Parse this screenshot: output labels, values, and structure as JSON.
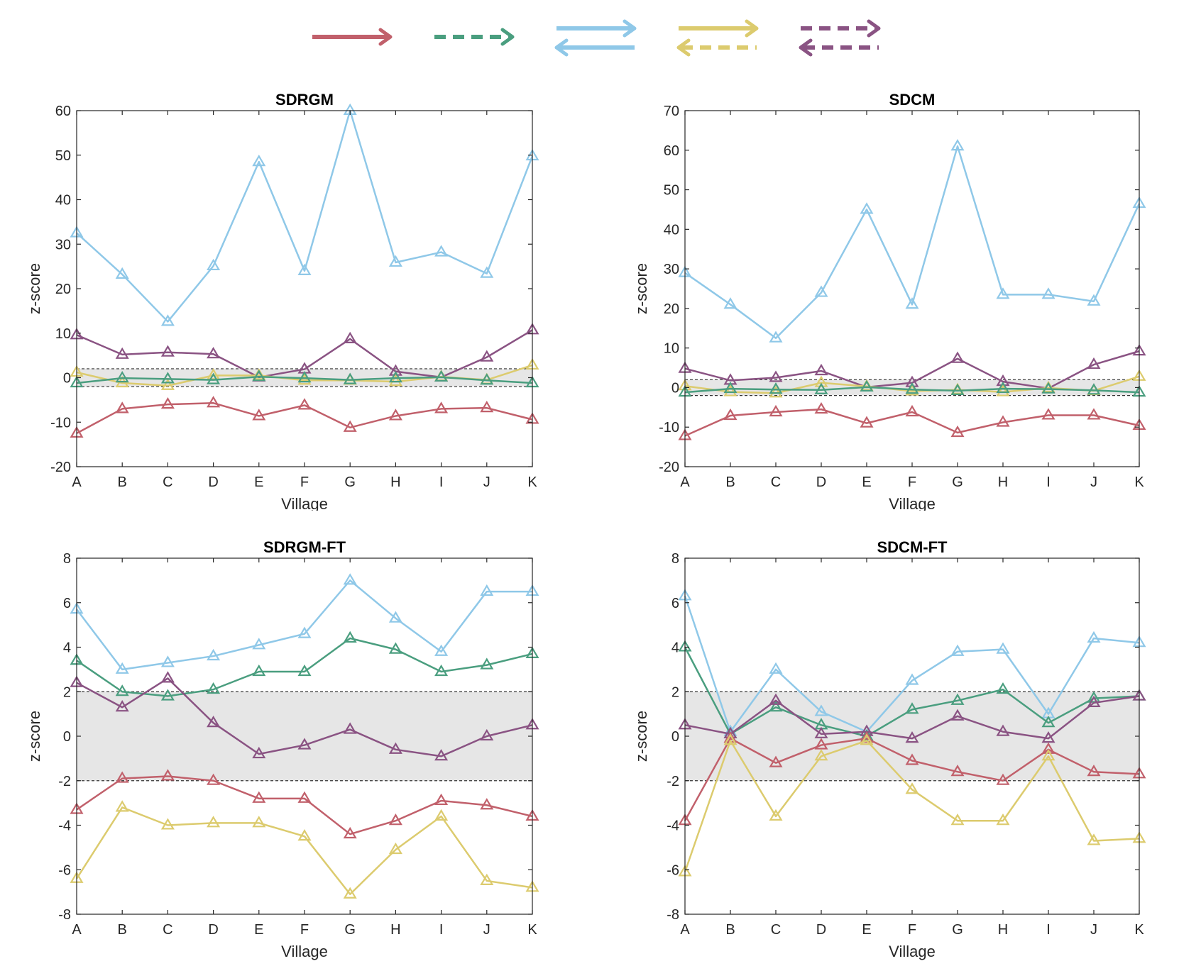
{
  "colors": {
    "red": "#c1606b",
    "green": "#4a9e7f",
    "blue": "#8fc8e8",
    "yellow": "#dccb6e",
    "purple": "#8a5383",
    "band": "#e6e6e6"
  },
  "legend": [
    {
      "name": "red-arrow",
      "type": "single",
      "color": "red",
      "dashed": false
    },
    {
      "name": "green-dashed-arrow",
      "type": "single",
      "color": "green",
      "dashed": true
    },
    {
      "name": "blue-double-arrow",
      "type": "double",
      "color": "blue",
      "dashedTop": false,
      "dashedBottom": false
    },
    {
      "name": "yellow-double-arrow",
      "type": "double",
      "color": "yellow",
      "dashedTop": false,
      "dashedBottom": true
    },
    {
      "name": "purple-dashed-double-arrow",
      "type": "double",
      "color": "purple",
      "dashedTop": true,
      "dashedBottom": true
    }
  ],
  "chart_data": [
    {
      "type": "line",
      "title": "SDRGM",
      "xlabel": "Village",
      "ylabel": "z-score",
      "categories": [
        "A",
        "B",
        "C",
        "D",
        "E",
        "F",
        "G",
        "H",
        "I",
        "J",
        "K"
      ],
      "ylim": [
        -20,
        60
      ],
      "yticks": [
        -20,
        -10,
        0,
        10,
        20,
        30,
        40,
        50,
        60
      ],
      "band": [
        -2,
        2
      ],
      "series": [
        {
          "name": "blue",
          "color": "blue",
          "values": [
            32.5,
            23.2,
            12.6,
            25.1,
            48.5,
            24.0,
            60.0,
            25.9,
            28.2,
            23.4,
            49.8
          ]
        },
        {
          "name": "purple",
          "color": "purple",
          "values": [
            9.6,
            5.2,
            5.7,
            5.3,
            0.1,
            1.9,
            8.7,
            1.4,
            0.1,
            4.6,
            10.7
          ]
        },
        {
          "name": "yellow",
          "color": "yellow",
          "values": [
            1.2,
            -1.2,
            -1.8,
            0.5,
            0.5,
            -0.6,
            -0.6,
            -0.9,
            0.2,
            -0.5,
            2.8
          ]
        },
        {
          "name": "green",
          "color": "green",
          "values": [
            -1.2,
            -0.1,
            -0.3,
            -0.5,
            0.2,
            -0.1,
            -0.5,
            -0.1,
            0.1,
            -0.6,
            -1.2
          ]
        },
        {
          "name": "red",
          "color": "red",
          "values": [
            -12.5,
            -7.0,
            -6.0,
            -5.7,
            -8.6,
            -6.2,
            -11.2,
            -8.6,
            -7.0,
            -6.8,
            -9.4
          ]
        }
      ]
    },
    {
      "type": "line",
      "title": "SDCM",
      "xlabel": "Village",
      "ylabel": "z-score",
      "categories": [
        "A",
        "B",
        "C",
        "D",
        "E",
        "F",
        "G",
        "H",
        "I",
        "J",
        "K"
      ],
      "ylim": [
        -20,
        70
      ],
      "yticks": [
        -20,
        -10,
        0,
        10,
        20,
        30,
        40,
        50,
        60,
        70
      ],
      "band": [
        -2,
        2
      ],
      "series": [
        {
          "name": "blue",
          "color": "blue",
          "values": [
            29.0,
            21.0,
            12.5,
            24.0,
            45.0,
            21.0,
            61.0,
            23.5,
            23.5,
            21.8,
            46.5
          ]
        },
        {
          "name": "purple",
          "color": "purple",
          "values": [
            4.8,
            1.8,
            2.5,
            4.2,
            0.1,
            1.2,
            7.3,
            1.5,
            -0.2,
            5.8,
            9.2
          ]
        },
        {
          "name": "yellow",
          "color": "yellow",
          "values": [
            0.4,
            -1.1,
            -1.4,
            1.2,
            0.3,
            -0.9,
            -0.6,
            -1.1,
            -0.1,
            -0.8,
            2.8
          ]
        },
        {
          "name": "green",
          "color": "green",
          "values": [
            -1.2,
            -0.3,
            -0.5,
            -0.6,
            0.1,
            -0.5,
            -0.8,
            -0.3,
            -0.4,
            -0.7,
            -1.2
          ]
        },
        {
          "name": "red",
          "color": "red",
          "values": [
            -12.2,
            -7.1,
            -6.2,
            -5.5,
            -9.0,
            -6.2,
            -11.4,
            -8.8,
            -7.0,
            -7.0,
            -9.6
          ]
        }
      ]
    },
    {
      "type": "line",
      "title": "SDRGM-FT",
      "xlabel": "Village",
      "ylabel": "z-score",
      "categories": [
        "A",
        "B",
        "C",
        "D",
        "E",
        "F",
        "G",
        "H",
        "I",
        "J",
        "K"
      ],
      "ylim": [
        -8,
        8
      ],
      "yticks": [
        -8,
        -6,
        -4,
        -2,
        0,
        2,
        4,
        6,
        8
      ],
      "band": [
        -2,
        2
      ],
      "series": [
        {
          "name": "blue",
          "color": "blue",
          "values": [
            5.7,
            3.0,
            3.3,
            3.6,
            4.1,
            4.6,
            7.0,
            5.3,
            3.8,
            6.5,
            6.5
          ]
        },
        {
          "name": "green",
          "color": "green",
          "values": [
            3.4,
            2.0,
            1.8,
            2.1,
            2.9,
            2.9,
            4.4,
            3.9,
            2.9,
            3.2,
            3.7
          ]
        },
        {
          "name": "purple",
          "color": "purple",
          "values": [
            2.4,
            1.3,
            2.6,
            0.6,
            -0.8,
            -0.4,
            0.3,
            -0.6,
            -0.9,
            0.0,
            0.5
          ]
        },
        {
          "name": "red",
          "color": "red",
          "values": [
            -3.3,
            -1.9,
            -1.8,
            -2.0,
            -2.8,
            -2.8,
            -4.4,
            -3.8,
            -2.9,
            -3.1,
            -3.6
          ]
        },
        {
          "name": "yellow",
          "color": "yellow",
          "values": [
            -6.4,
            -3.2,
            -4.0,
            -3.9,
            -3.9,
            -4.5,
            -7.1,
            -5.1,
            -3.6,
            -6.5,
            -6.8
          ]
        }
      ]
    },
    {
      "type": "line",
      "title": "SDCM-FT",
      "xlabel": "Village",
      "ylabel": "z-score",
      "categories": [
        "A",
        "B",
        "C",
        "D",
        "E",
        "F",
        "G",
        "H",
        "I",
        "J",
        "K"
      ],
      "ylim": [
        -8,
        8
      ],
      "yticks": [
        -8,
        -6,
        -4,
        -2,
        0,
        2,
        4,
        6,
        8
      ],
      "band": [
        -2,
        2
      ],
      "series": [
        {
          "name": "blue",
          "color": "blue",
          "values": [
            6.3,
            0.2,
            3.0,
            1.1,
            0.2,
            2.5,
            3.8,
            3.9,
            1.0,
            4.4,
            4.2
          ]
        },
        {
          "name": "green",
          "color": "green",
          "values": [
            4.0,
            0.1,
            1.3,
            0.5,
            0.0,
            1.2,
            1.6,
            2.1,
            0.6,
            1.7,
            1.8
          ]
        },
        {
          "name": "purple",
          "color": "purple",
          "values": [
            0.5,
            0.1,
            1.6,
            0.1,
            0.2,
            -0.1,
            0.9,
            0.2,
            -0.1,
            1.5,
            1.8
          ]
        },
        {
          "name": "red",
          "color": "red",
          "values": [
            -3.8,
            -0.1,
            -1.2,
            -0.4,
            -0.1,
            -1.1,
            -1.6,
            -2.0,
            -0.6,
            -1.6,
            -1.7
          ]
        },
        {
          "name": "yellow",
          "color": "yellow",
          "values": [
            -6.1,
            -0.2,
            -3.6,
            -0.9,
            -0.2,
            -2.4,
            -3.8,
            -3.8,
            -0.9,
            -4.7,
            -4.6
          ]
        }
      ]
    }
  ]
}
